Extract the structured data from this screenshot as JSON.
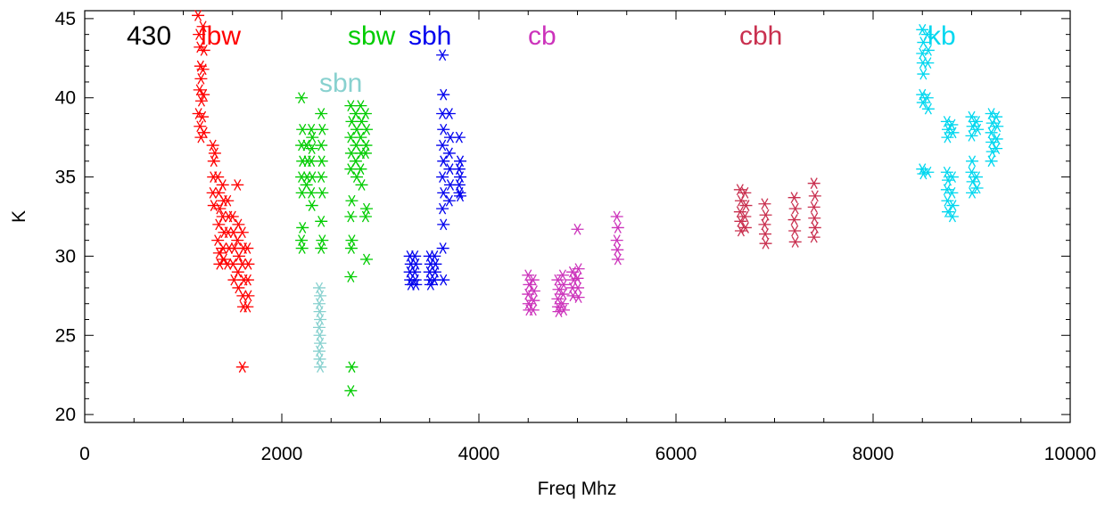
{
  "chart_data": {
    "type": "scatter",
    "title": "",
    "xlabel": "Freq Mhz",
    "ylabel": "K",
    "xlim": [
      0,
      10000
    ],
    "ylim": [
      19.5,
      45.5
    ],
    "x_ticks": [
      0,
      2000,
      4000,
      6000,
      8000,
      10000
    ],
    "y_ticks": [
      20,
      25,
      30,
      35,
      40,
      45
    ],
    "grid": false,
    "marker": "asterisk",
    "annotation": "430",
    "series": [
      {
        "name": "lbw",
        "color": "#ff0000",
        "points": [
          [
            1150,
            45.2
          ],
          [
            1160,
            44.0
          ],
          [
            1170,
            43.2
          ],
          [
            1175,
            42.0
          ],
          [
            1180,
            41.2
          ],
          [
            1165,
            40.5
          ],
          [
            1185,
            39.8
          ],
          [
            1155,
            39.0
          ],
          [
            1170,
            38.2
          ],
          [
            1180,
            37.5
          ],
          [
            1200,
            44.5
          ],
          [
            1210,
            43.0
          ],
          [
            1200,
            41.8
          ],
          [
            1205,
            40.2
          ],
          [
            1195,
            38.8
          ],
          [
            1210,
            37.8
          ],
          [
            1300,
            37.0
          ],
          [
            1310,
            36.0
          ],
          [
            1305,
            35.0
          ],
          [
            1300,
            34.0
          ],
          [
            1310,
            33.2
          ],
          [
            1320,
            36.5
          ],
          [
            1350,
            35.0
          ],
          [
            1360,
            34.0
          ],
          [
            1370,
            33.0
          ],
          [
            1360,
            32.0
          ],
          [
            1350,
            31.0
          ],
          [
            1365,
            30.2
          ],
          [
            1370,
            29.5
          ],
          [
            1400,
            34.5
          ],
          [
            1410,
            33.5
          ],
          [
            1400,
            32.5
          ],
          [
            1415,
            31.5
          ],
          [
            1405,
            30.5
          ],
          [
            1410,
            29.8
          ],
          [
            1450,
            33.5
          ],
          [
            1460,
            32.5
          ],
          [
            1455,
            31.5
          ],
          [
            1465,
            30.5
          ],
          [
            1450,
            29.5
          ],
          [
            1500,
            32.5
          ],
          [
            1510,
            31.5
          ],
          [
            1520,
            30.5
          ],
          [
            1505,
            29.5
          ],
          [
            1515,
            28.5
          ],
          [
            1550,
            34.5
          ],
          [
            1560,
            32.0
          ],
          [
            1550,
            31.0
          ],
          [
            1565,
            30.0
          ],
          [
            1555,
            29.0
          ],
          [
            1560,
            28.0
          ],
          [
            1600,
            31.5
          ],
          [
            1610,
            30.5
          ],
          [
            1600,
            29.5
          ],
          [
            1615,
            28.5
          ],
          [
            1605,
            27.5
          ],
          [
            1610,
            26.8
          ],
          [
            1650,
            30.5
          ],
          [
            1660,
            29.5
          ],
          [
            1655,
            28.5
          ],
          [
            1660,
            27.5
          ],
          [
            1650,
            26.8
          ],
          [
            1600,
            23.0
          ]
        ]
      },
      {
        "name": "sbw",
        "color": "#00cc00",
        "points": [
          [
            2200,
            40.0
          ],
          [
            2210,
            38.0
          ],
          [
            2200,
            37.0
          ],
          [
            2210,
            36.0
          ],
          [
            2200,
            35.0
          ],
          [
            2205,
            34.0
          ],
          [
            2210,
            31.8
          ],
          [
            2200,
            31.0
          ],
          [
            2205,
            30.5
          ],
          [
            2250,
            37.0
          ],
          [
            2260,
            36.0
          ],
          [
            2255,
            35.0
          ],
          [
            2250,
            34.5
          ],
          [
            2300,
            38.0
          ],
          [
            2310,
            37.5
          ],
          [
            2305,
            36.8
          ],
          [
            2300,
            36.0
          ],
          [
            2310,
            35.0
          ],
          [
            2300,
            34.0
          ],
          [
            2305,
            33.2
          ],
          [
            2400,
            39.0
          ],
          [
            2410,
            38.0
          ],
          [
            2400,
            37.0
          ],
          [
            2405,
            36.0
          ],
          [
            2400,
            35.0
          ],
          [
            2410,
            34.0
          ],
          [
            2400,
            32.2
          ],
          [
            2410,
            31.0
          ],
          [
            2400,
            30.5
          ],
          [
            2700,
            39.5
          ],
          [
            2710,
            38.5
          ],
          [
            2700,
            37.5
          ],
          [
            2705,
            36.5
          ],
          [
            2700,
            35.5
          ],
          [
            2710,
            33.5
          ],
          [
            2700,
            32.5
          ],
          [
            2710,
            31.0
          ],
          [
            2705,
            30.5
          ],
          [
            2700,
            28.7
          ],
          [
            2710,
            23.0
          ],
          [
            2700,
            21.5
          ],
          [
            2750,
            39.0
          ],
          [
            2760,
            38.0
          ],
          [
            2755,
            37.0
          ],
          [
            2750,
            36.0
          ],
          [
            2760,
            35.0
          ],
          [
            2800,
            39.5
          ],
          [
            2810,
            38.5
          ],
          [
            2800,
            37.5
          ],
          [
            2805,
            36.5
          ],
          [
            2800,
            35.5
          ],
          [
            2810,
            34.5
          ],
          [
            2850,
            39.0
          ],
          [
            2860,
            38.0
          ],
          [
            2855,
            37.0
          ],
          [
            2850,
            36.5
          ],
          [
            2860,
            33.0
          ],
          [
            2850,
            32.5
          ],
          [
            2860,
            29.8
          ]
        ]
      },
      {
        "name": "sbn",
        "color": "#88d1cf",
        "points": [
          [
            2380,
            28.0
          ],
          [
            2390,
            27.5
          ],
          [
            2380,
            27.0
          ],
          [
            2385,
            26.5
          ],
          [
            2390,
            26.0
          ],
          [
            2380,
            25.5
          ],
          [
            2385,
            25.0
          ],
          [
            2390,
            24.5
          ],
          [
            2380,
            24.0
          ],
          [
            2385,
            23.5
          ],
          [
            2390,
            23.0
          ]
        ]
      },
      {
        "name": "sbh",
        "color": "#0000ee",
        "points": [
          [
            3300,
            30.0
          ],
          [
            3310,
            29.5
          ],
          [
            3300,
            29.0
          ],
          [
            3305,
            28.5
          ],
          [
            3310,
            28.2
          ],
          [
            3350,
            30.0
          ],
          [
            3360,
            29.5
          ],
          [
            3350,
            29.0
          ],
          [
            3355,
            28.5
          ],
          [
            3360,
            28.2
          ],
          [
            3500,
            30.0
          ],
          [
            3510,
            29.5
          ],
          [
            3500,
            29.0
          ],
          [
            3505,
            28.5
          ],
          [
            3510,
            28.2
          ],
          [
            3550,
            30.0
          ],
          [
            3560,
            29.5
          ],
          [
            3555,
            29.0
          ],
          [
            3550,
            28.5
          ],
          [
            3630,
            42.7
          ],
          [
            3640,
            40.2
          ],
          [
            3630,
            39.0
          ],
          [
            3640,
            38.0
          ],
          [
            3630,
            37.0
          ],
          [
            3640,
            36.0
          ],
          [
            3630,
            35.0
          ],
          [
            3640,
            34.0
          ],
          [
            3630,
            33.0
          ],
          [
            3640,
            32.0
          ],
          [
            3635,
            30.5
          ],
          [
            3640,
            28.5
          ],
          [
            3700,
            39.0
          ],
          [
            3710,
            37.5
          ],
          [
            3700,
            36.5
          ],
          [
            3705,
            35.5
          ],
          [
            3710,
            34.5
          ],
          [
            3700,
            33.5
          ],
          [
            3800,
            37.5
          ],
          [
            3810,
            36.0
          ],
          [
            3800,
            35.5
          ],
          [
            3810,
            35.0
          ],
          [
            3800,
            34.5
          ],
          [
            3805,
            34.0
          ],
          [
            3810,
            33.8
          ]
        ]
      },
      {
        "name": "cb",
        "color": "#cc33bb",
        "points": [
          [
            4500,
            28.8
          ],
          [
            4510,
            28.2
          ],
          [
            4500,
            27.6
          ],
          [
            4505,
            27.0
          ],
          [
            4510,
            26.6
          ],
          [
            4550,
            28.5
          ],
          [
            4560,
            27.8
          ],
          [
            4555,
            27.2
          ],
          [
            4550,
            26.6
          ],
          [
            4800,
            28.5
          ],
          [
            4810,
            27.9
          ],
          [
            4800,
            27.3
          ],
          [
            4805,
            26.8
          ],
          [
            4810,
            26.5
          ],
          [
            4850,
            28.8
          ],
          [
            4860,
            28.2
          ],
          [
            4855,
            27.6
          ],
          [
            4850,
            27.0
          ],
          [
            4860,
            26.6
          ],
          [
            4950,
            29.0
          ],
          [
            4960,
            28.5
          ],
          [
            4950,
            28.0
          ],
          [
            4955,
            27.5
          ],
          [
            5000,
            31.7
          ],
          [
            5010,
            29.2
          ],
          [
            5000,
            28.6
          ],
          [
            5005,
            28.0
          ],
          [
            5010,
            27.4
          ],
          [
            5400,
            32.5
          ],
          [
            5410,
            31.8
          ],
          [
            5400,
            31.0
          ],
          [
            5405,
            30.4
          ],
          [
            5410,
            29.8
          ]
        ]
      },
      {
        "name": "cbh",
        "color": "#c9304f",
        "points": [
          [
            6650,
            34.2
          ],
          [
            6660,
            33.5
          ],
          [
            6650,
            32.8
          ],
          [
            6655,
            32.2
          ],
          [
            6660,
            31.6
          ],
          [
            6700,
            34.0
          ],
          [
            6710,
            33.2
          ],
          [
            6700,
            32.5
          ],
          [
            6705,
            31.8
          ],
          [
            6900,
            33.3
          ],
          [
            6910,
            32.6
          ],
          [
            6900,
            32.0
          ],
          [
            6905,
            31.4
          ],
          [
            6910,
            30.8
          ],
          [
            7200,
            33.7
          ],
          [
            7210,
            33.0
          ],
          [
            7200,
            32.3
          ],
          [
            7205,
            31.6
          ],
          [
            7210,
            30.9
          ],
          [
            7400,
            34.6
          ],
          [
            7410,
            33.8
          ],
          [
            7400,
            33.1
          ],
          [
            7405,
            32.4
          ],
          [
            7410,
            31.8
          ],
          [
            7400,
            31.2
          ]
        ]
      },
      {
        "name": "kb",
        "color": "#00d7ef",
        "points": [
          [
            8500,
            44.3
          ],
          [
            8510,
            43.5
          ],
          [
            8500,
            42.8
          ],
          [
            8505,
            42.2
          ],
          [
            8510,
            41.5
          ],
          [
            8500,
            40.2
          ],
          [
            8505,
            39.7
          ],
          [
            8500,
            35.5
          ],
          [
            8510,
            35.2
          ],
          [
            8550,
            44.0
          ],
          [
            8560,
            43.0
          ],
          [
            8555,
            42.2
          ],
          [
            8550,
            40.0
          ],
          [
            8560,
            39.3
          ],
          [
            8555,
            35.3
          ],
          [
            8750,
            38.5
          ],
          [
            8760,
            38.0
          ],
          [
            8755,
            37.5
          ],
          [
            8750,
            35.3
          ],
          [
            8760,
            34.8
          ],
          [
            8750,
            34.2
          ],
          [
            8755,
            33.5
          ],
          [
            8760,
            32.8
          ],
          [
            8800,
            38.3
          ],
          [
            8810,
            37.8
          ],
          [
            8805,
            35.0
          ],
          [
            8800,
            34.0
          ],
          [
            8810,
            33.2
          ],
          [
            8805,
            32.5
          ],
          [
            9000,
            38.8
          ],
          [
            9010,
            38.2
          ],
          [
            9000,
            37.6
          ],
          [
            9005,
            36.0
          ],
          [
            9000,
            35.3
          ],
          [
            9010,
            34.7
          ],
          [
            9005,
            34.0
          ],
          [
            9050,
            38.5
          ],
          [
            9060,
            38.0
          ],
          [
            9050,
            35.0
          ],
          [
            9055,
            34.3
          ],
          [
            9200,
            39.0
          ],
          [
            9210,
            38.4
          ],
          [
            9200,
            37.8
          ],
          [
            9205,
            37.2
          ],
          [
            9210,
            36.6
          ],
          [
            9200,
            36.0
          ],
          [
            9250,
            38.8
          ],
          [
            9260,
            38.2
          ],
          [
            9255,
            37.4
          ],
          [
            9250,
            36.8
          ]
        ]
      }
    ]
  }
}
